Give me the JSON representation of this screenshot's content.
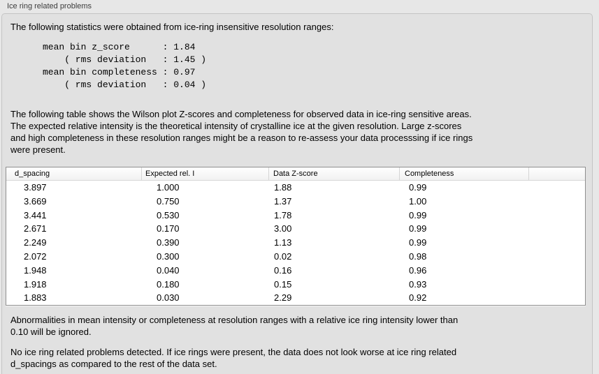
{
  "panel": {
    "title": "Ice ring related problems",
    "intro": "The following statistics were obtained from ice-ring insensitive resolution ranges:",
    "table_description": "The following table shows the Wilson plot Z-scores and completeness for observed data in ice-ring sensitive areas.\nThe expected relative intensity is the theoretical intensity of crystalline ice at the given resolution. Large z-scores\nand high completeness in these resolution ranges might be a reason to re-assess your data processsing if ice rings\nwere present.",
    "note_ignore": "Abnormalities in mean intensity or completeness at resolution ranges with a relative ice ring intensity lower than\n0.10 will be ignored.",
    "note_result": "No ice ring related problems detected. If ice rings were present, the data does not look worse at ice ring related\nd_spacings as compared to the rest of the data set."
  },
  "stats": {
    "text": "mean bin z_score      : 1.84\n    ( rms deviation   : 1.45 )\nmean bin completeness : 0.97\n    ( rms deviation   : 0.04 )",
    "mean_bin_z_score": "1.84",
    "z_score_rms_deviation": "1.45",
    "mean_bin_completeness": "0.97",
    "completeness_rms_deviation": "0.04"
  },
  "table": {
    "columns": [
      "d_spacing",
      "Expected rel. I",
      "Data Z-score",
      "Completeness",
      ""
    ],
    "rows": [
      [
        "3.897",
        "1.000",
        "1.88",
        "0.99"
      ],
      [
        "3.669",
        "0.750",
        "1.37",
        "1.00"
      ],
      [
        "3.441",
        "0.530",
        "1.78",
        "0.99"
      ],
      [
        "2.671",
        "0.170",
        "3.00",
        "0.99"
      ],
      [
        "2.249",
        "0.390",
        "1.13",
        "0.99"
      ],
      [
        "2.072",
        "0.300",
        "0.02",
        "0.98"
      ],
      [
        "1.948",
        "0.040",
        "0.16",
        "0.96"
      ],
      [
        "1.918",
        "0.180",
        "0.15",
        "0.93"
      ],
      [
        "1.883",
        "0.030",
        "2.29",
        "0.92"
      ]
    ]
  },
  "colors": {
    "page_bg": "#e7e7e7",
    "panel_bg": "#e1e1e1",
    "panel_border": "#c4c4c4",
    "table_bg": "#ffffff",
    "table_border": "#8f8f8f",
    "header_separator": "#d5d5d5"
  }
}
